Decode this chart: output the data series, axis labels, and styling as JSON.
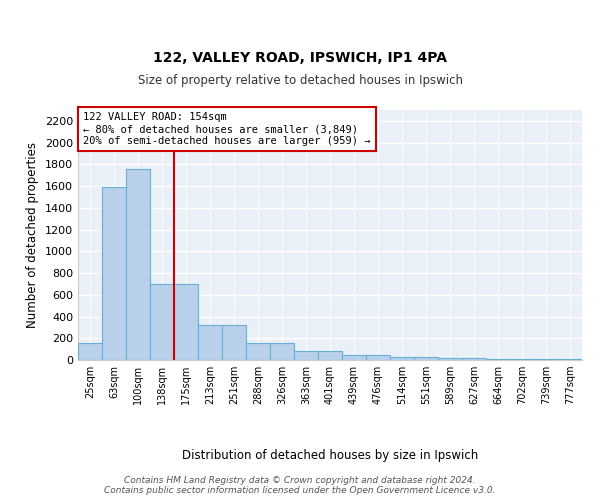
{
  "title1": "122, VALLEY ROAD, IPSWICH, IP1 4PA",
  "title2": "Size of property relative to detached houses in Ipswich",
  "xlabel": "Distribution of detached houses by size in Ipswich",
  "ylabel": "Number of detached properties",
  "categories": [
    "25sqm",
    "63sqm",
    "100sqm",
    "138sqm",
    "175sqm",
    "213sqm",
    "251sqm",
    "288sqm",
    "326sqm",
    "363sqm",
    "401sqm",
    "439sqm",
    "476sqm",
    "514sqm",
    "551sqm",
    "589sqm",
    "627sqm",
    "664sqm",
    "702sqm",
    "739sqm",
    "777sqm"
  ],
  "values": [
    155,
    1590,
    1760,
    700,
    700,
    320,
    320,
    155,
    155,
    85,
    85,
    50,
    50,
    25,
    25,
    15,
    15,
    10,
    10,
    8,
    8
  ],
  "bar_color": "#b8d0ea",
  "bar_edge_color": "#6aaed6",
  "vline_x_idx": 3,
  "vline_color": "#cc0000",
  "annotation_line1": "122 VALLEY ROAD: 154sqm",
  "annotation_line2": "← 80% of detached houses are smaller (3,849)",
  "annotation_line3": "20% of semi-detached houses are larger (959) →",
  "annotation_box_color": "#ffffff",
  "annotation_box_edge": "#cc0000",
  "footer_text": "Contains HM Land Registry data © Crown copyright and database right 2024.\nContains public sector information licensed under the Open Government Licence v3.0.",
  "ylim": [
    0,
    2300
  ],
  "yticks": [
    0,
    200,
    400,
    600,
    800,
    1000,
    1200,
    1400,
    1600,
    1800,
    2000,
    2200
  ],
  "background_color": "#eaf0f8",
  "grid_color": "#ffffff",
  "fig_bg": "#ffffff"
}
